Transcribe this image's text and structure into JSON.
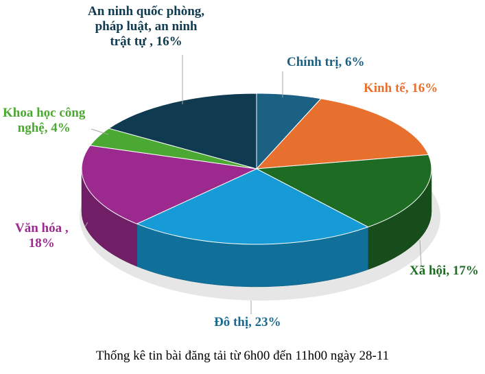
{
  "chart_data": {
    "type": "pie",
    "style": "3d",
    "title": "Thống kê tin bài đăng tải từ 6h00 đến 11h00 ngày 28-11",
    "title_position": "bottom",
    "start": "top",
    "direction": "clockwise",
    "slices": [
      {
        "label": "Chính trị",
        "value": 6,
        "text": "Chính trị, 6%",
        "color": "#1a6183",
        "label_color": "#1a6183"
      },
      {
        "label": "Kinh tế",
        "value": 16,
        "text": "Kinh tế, 16%",
        "color": "#e8702e",
        "label_color": "#e8702e"
      },
      {
        "label": "Xã hội",
        "value": 17,
        "text": "Xã hội, 17%",
        "color": "#1e6b24",
        "label_color": "#1e6b24"
      },
      {
        "label": "Đô thị",
        "value": 23,
        "text": "Đô thị, 23%",
        "color": "#179bd6",
        "label_color": "#1b6a8e"
      },
      {
        "label": "Văn hóa",
        "value": 18,
        "text_lines": [
          "Văn hóa ,",
          "18%"
        ],
        "color": "#9c2a8e",
        "label_color": "#9c2a8e"
      },
      {
        "label": "Khoa học công nghệ",
        "value": 4,
        "text_lines": [
          "Khoa học công",
          "nghệ, 4%"
        ],
        "color": "#4ba832",
        "label_color": "#4ba832"
      },
      {
        "label": "An ninh quốc phòng, pháp luật, an ninh trật tự",
        "value": 16,
        "text_lines": [
          "An ninh quốc phòng,",
          "pháp luật, an ninh",
          "trật tự , 16%"
        ],
        "color": "#0f3a4f",
        "label_color": "#0f3a4f"
      }
    ]
  }
}
